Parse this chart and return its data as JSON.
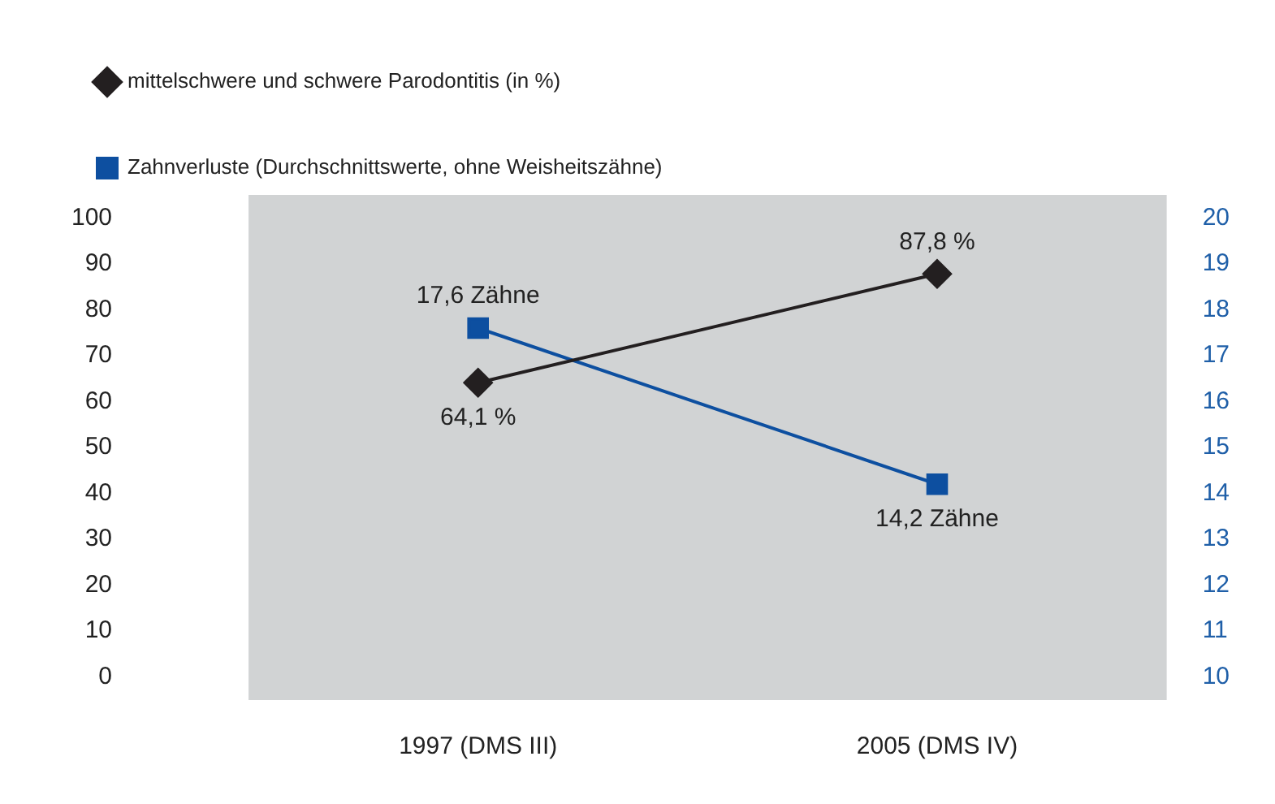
{
  "chart_data": {
    "type": "line",
    "categories": [
      "1997 (DMS III)",
      "2005 (DMS IV)"
    ],
    "series": [
      {
        "name": "mittelschwere und schwere Parodontitis (in %)",
        "color": "#231f20",
        "values": [
          64.1,
          87.8
        ],
        "marker": "diamond",
        "value_labels": [
          "64,1 %",
          "87,8 %"
        ]
      },
      {
        "name": "Zahnverluste (Durchschnittswerte, ohne Weisheitszähne)",
        "color": "#0d4fa0",
        "values": [
          17.6,
          14.2
        ],
        "marker": "square",
        "axis": "y2",
        "value_labels": [
          "17,6 Zähne",
          "14,2 Zähne"
        ]
      }
    ],
    "ylim": [
      -5,
      105
    ],
    "yticks": [
      0,
      10,
      20,
      30,
      40,
      50,
      60,
      70,
      80,
      90,
      100
    ],
    "y2lim": [
      9.5,
      20.5
    ],
    "y2ticks": [
      10,
      11,
      12,
      13,
      14,
      15,
      16,
      17,
      18,
      19,
      20
    ],
    "grid": false,
    "legend": "top left",
    "line_style": "solid"
  }
}
